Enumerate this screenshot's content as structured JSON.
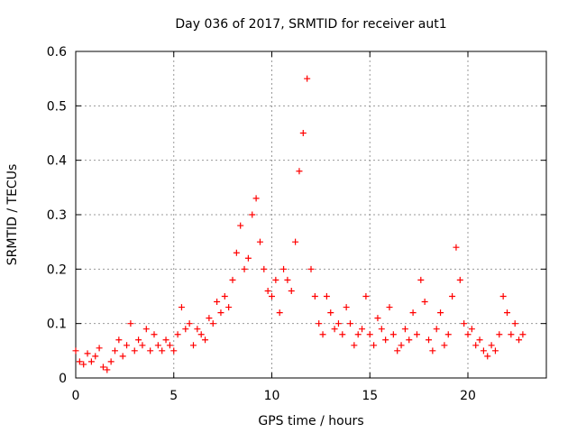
{
  "chart_data": {
    "type": "scatter",
    "title": "Day 036 of 2017, SRMTID for receiver aut1",
    "xlabel": "GPS time / hours",
    "ylabel": "SRMTID / TECUs",
    "xlim": [
      0,
      24
    ],
    "ylim": [
      0,
      0.6
    ],
    "xticks": [
      0,
      5,
      10,
      15,
      20
    ],
    "yticks": [
      0,
      0.1,
      0.2,
      0.3,
      0.4,
      0.5,
      0.6
    ],
    "xtick_labels": [
      "0",
      "5",
      "10",
      "15",
      "20"
    ],
    "ytick_labels": [
      "0",
      "0.1",
      "0.2",
      "0.3",
      "0.4",
      "0.5",
      "0.6"
    ],
    "grid": true,
    "marker": "+",
    "marker_color": "#ff0000",
    "series": [
      {
        "name": "aut1",
        "points": [
          [
            0.0,
            0.05
          ],
          [
            0.2,
            0.03
          ],
          [
            0.4,
            0.025
          ],
          [
            0.6,
            0.045
          ],
          [
            0.8,
            0.03
          ],
          [
            1.0,
            0.04
          ],
          [
            1.2,
            0.055
          ],
          [
            1.4,
            0.02
          ],
          [
            1.6,
            0.015
          ],
          [
            1.8,
            0.03
          ],
          [
            2.0,
            0.05
          ],
          [
            2.2,
            0.07
          ],
          [
            2.4,
            0.04
          ],
          [
            2.6,
            0.06
          ],
          [
            2.8,
            0.1
          ],
          [
            3.0,
            0.05
          ],
          [
            3.2,
            0.07
          ],
          [
            3.4,
            0.06
          ],
          [
            3.6,
            0.09
          ],
          [
            3.8,
            0.05
          ],
          [
            4.0,
            0.08
          ],
          [
            4.2,
            0.06
          ],
          [
            4.4,
            0.05
          ],
          [
            4.6,
            0.07
          ],
          [
            4.8,
            0.06
          ],
          [
            5.0,
            0.05
          ],
          [
            5.2,
            0.08
          ],
          [
            5.4,
            0.13
          ],
          [
            5.6,
            0.09
          ],
          [
            5.8,
            0.1
          ],
          [
            6.0,
            0.06
          ],
          [
            6.2,
            0.09
          ],
          [
            6.4,
            0.08
          ],
          [
            6.6,
            0.07
          ],
          [
            6.8,
            0.11
          ],
          [
            7.0,
            0.1
          ],
          [
            7.2,
            0.14
          ],
          [
            7.4,
            0.12
          ],
          [
            7.6,
            0.15
          ],
          [
            7.8,
            0.13
          ],
          [
            8.0,
            0.18
          ],
          [
            8.2,
            0.23
          ],
          [
            8.4,
            0.28
          ],
          [
            8.6,
            0.2
          ],
          [
            8.8,
            0.22
          ],
          [
            9.0,
            0.3
          ],
          [
            9.2,
            0.33
          ],
          [
            9.4,
            0.25
          ],
          [
            9.6,
            0.2
          ],
          [
            9.8,
            0.16
          ],
          [
            10.0,
            0.15
          ],
          [
            10.2,
            0.18
          ],
          [
            10.4,
            0.12
          ],
          [
            10.6,
            0.2
          ],
          [
            10.8,
            0.18
          ],
          [
            11.0,
            0.16
          ],
          [
            11.2,
            0.25
          ],
          [
            11.4,
            0.38
          ],
          [
            11.6,
            0.45
          ],
          [
            11.8,
            0.55
          ],
          [
            12.0,
            0.2
          ],
          [
            12.2,
            0.15
          ],
          [
            12.4,
            0.1
          ],
          [
            12.6,
            0.08
          ],
          [
            12.8,
            0.15
          ],
          [
            13.0,
            0.12
          ],
          [
            13.2,
            0.09
          ],
          [
            13.4,
            0.1
          ],
          [
            13.6,
            0.08
          ],
          [
            13.8,
            0.13
          ],
          [
            14.0,
            0.1
          ],
          [
            14.2,
            0.06
          ],
          [
            14.4,
            0.08
          ],
          [
            14.6,
            0.09
          ],
          [
            14.8,
            0.15
          ],
          [
            15.0,
            0.08
          ],
          [
            15.2,
            0.06
          ],
          [
            15.4,
            0.11
          ],
          [
            15.6,
            0.09
          ],
          [
            15.8,
            0.07
          ],
          [
            16.0,
            0.13
          ],
          [
            16.2,
            0.08
          ],
          [
            16.4,
            0.05
          ],
          [
            16.6,
            0.06
          ],
          [
            16.8,
            0.09
          ],
          [
            17.0,
            0.07
          ],
          [
            17.2,
            0.12
          ],
          [
            17.4,
            0.08
          ],
          [
            17.6,
            0.18
          ],
          [
            17.8,
            0.14
          ],
          [
            18.0,
            0.07
          ],
          [
            18.2,
            0.05
          ],
          [
            18.4,
            0.09
          ],
          [
            18.6,
            0.12
          ],
          [
            18.8,
            0.06
          ],
          [
            19.0,
            0.08
          ],
          [
            19.2,
            0.15
          ],
          [
            19.4,
            0.24
          ],
          [
            19.6,
            0.18
          ],
          [
            19.8,
            0.1
          ],
          [
            20.0,
            0.08
          ],
          [
            20.2,
            0.09
          ],
          [
            20.4,
            0.06
          ],
          [
            20.6,
            0.07
          ],
          [
            20.8,
            0.05
          ],
          [
            21.0,
            0.04
          ],
          [
            21.2,
            0.06
          ],
          [
            21.4,
            0.05
          ],
          [
            21.6,
            0.08
          ],
          [
            21.8,
            0.15
          ],
          [
            22.0,
            0.12
          ],
          [
            22.2,
            0.08
          ],
          [
            22.4,
            0.1
          ],
          [
            22.6,
            0.07
          ],
          [
            22.8,
            0.08
          ]
        ]
      }
    ]
  }
}
